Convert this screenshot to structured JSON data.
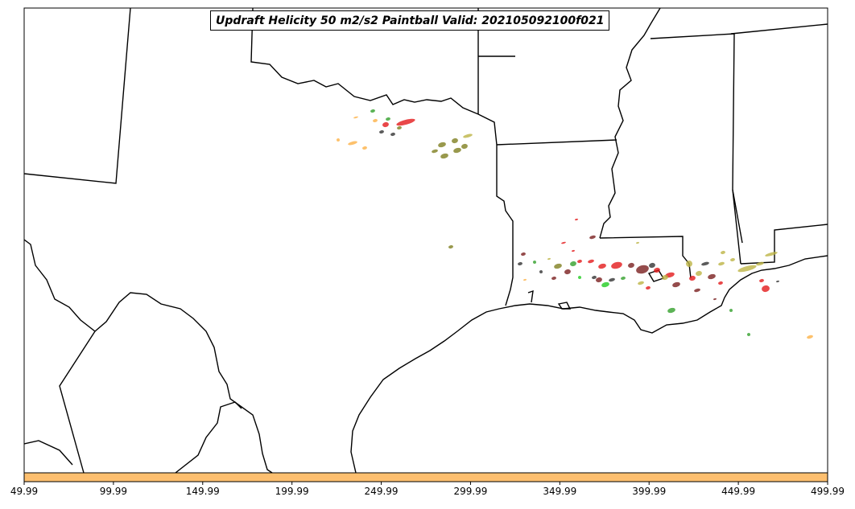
{
  "title": "Updraft Helicity 50 m2/s2 Paintball Valid: 202105092100f021",
  "colorbar": {
    "color": "#fdbf6f",
    "ticks": [
      "49.99",
      "99.99",
      "149.99",
      "199.99",
      "249.99",
      "299.99",
      "349.99",
      "399.99",
      "449.99",
      "499.99"
    ]
  },
  "colors": {
    "red": "#e31a1c",
    "olive": "#808020",
    "khaki": "#bdb445",
    "green": "#33a02c",
    "lime": "#22cc22",
    "orange": "#fdb147",
    "maroon": "#7a1f1f",
    "dark": "#333333"
  }
}
